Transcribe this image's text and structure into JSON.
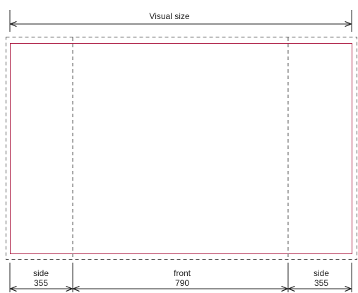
{
  "title": "Visual size",
  "panels": [
    {
      "name": "side",
      "value": "355"
    },
    {
      "name": "front",
      "value": "790"
    },
    {
      "name": "side",
      "value": "355"
    }
  ],
  "colors": {
    "line": "#222222",
    "dashed_outline": "#555555",
    "visual_border": "#b0244a",
    "background": "#ffffff"
  }
}
